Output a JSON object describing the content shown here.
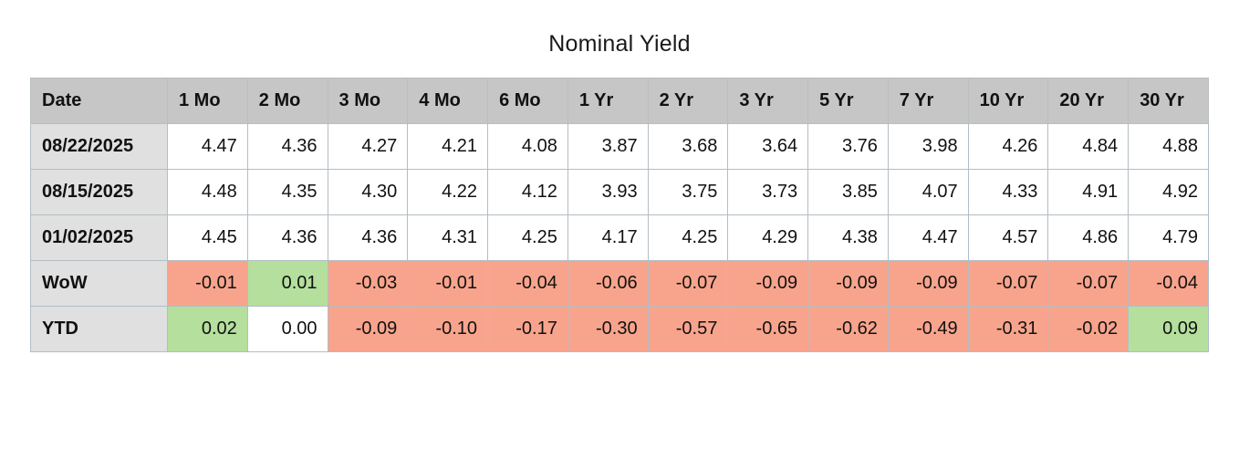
{
  "title": "Nominal Yield",
  "colors": {
    "negative": "#f8a48d",
    "positive": "#b5df9d",
    "neutral": "#ffffff",
    "header_bg": "#c6c6c6",
    "label_bg": "#e0e0e0"
  },
  "table": {
    "columns": [
      "Date",
      "1 Mo",
      "2 Mo",
      "3 Mo",
      "4 Mo",
      "6 Mo",
      "1 Yr",
      "2 Yr",
      "3 Yr",
      "5 Yr",
      "7 Yr",
      "10 Yr",
      "20 Yr",
      "30 Yr"
    ],
    "rows": [
      {
        "label": "08/22/2025",
        "values": [
          "4.47",
          "4.36",
          "4.27",
          "4.21",
          "4.08",
          "3.87",
          "3.68",
          "3.64",
          "3.76",
          "3.98",
          "4.26",
          "4.84",
          "4.88"
        ]
      },
      {
        "label": "08/15/2025",
        "values": [
          "4.48",
          "4.35",
          "4.30",
          "4.22",
          "4.12",
          "3.93",
          "3.75",
          "3.73",
          "3.85",
          "4.07",
          "4.33",
          "4.91",
          "4.92"
        ]
      },
      {
        "label": "01/02/2025",
        "values": [
          "4.45",
          "4.36",
          "4.36",
          "4.31",
          "4.25",
          "4.17",
          "4.25",
          "4.29",
          "4.38",
          "4.47",
          "4.57",
          "4.86",
          "4.79"
        ]
      },
      {
        "label": "WoW",
        "values": [
          "-0.01",
          "0.01",
          "-0.03",
          "-0.01",
          "-0.04",
          "-0.06",
          "-0.07",
          "-0.09",
          "-0.09",
          "-0.09",
          "-0.07",
          "-0.07",
          "-0.04"
        ]
      },
      {
        "label": "YTD",
        "values": [
          "0.02",
          "0.00",
          "-0.09",
          "-0.10",
          "-0.17",
          "-0.30",
          "-0.57",
          "-0.65",
          "-0.62",
          "-0.49",
          "-0.31",
          "-0.02",
          "0.09"
        ]
      }
    ]
  },
  "chart_data": {
    "type": "table",
    "title": "Nominal Yield",
    "columns": [
      "1 Mo",
      "2 Mo",
      "3 Mo",
      "4 Mo",
      "6 Mo",
      "1 Yr",
      "2 Yr",
      "3 Yr",
      "5 Yr",
      "7 Yr",
      "10 Yr",
      "20 Yr",
      "30 Yr"
    ],
    "rows": [
      {
        "label": "08/22/2025",
        "values": [
          4.47,
          4.36,
          4.27,
          4.21,
          4.08,
          3.87,
          3.68,
          3.64,
          3.76,
          3.98,
          4.26,
          4.84,
          4.88
        ]
      },
      {
        "label": "08/15/2025",
        "values": [
          4.48,
          4.35,
          4.3,
          4.22,
          4.12,
          3.93,
          3.75,
          3.73,
          3.85,
          4.07,
          4.33,
          4.91,
          4.92
        ]
      },
      {
        "label": "01/02/2025",
        "values": [
          4.45,
          4.36,
          4.36,
          4.31,
          4.25,
          4.17,
          4.25,
          4.29,
          4.38,
          4.47,
          4.57,
          4.86,
          4.79
        ]
      },
      {
        "label": "WoW",
        "values": [
          -0.01,
          0.01,
          -0.03,
          -0.01,
          -0.04,
          -0.06,
          -0.07,
          -0.09,
          -0.09,
          -0.09,
          -0.07,
          -0.07,
          -0.04
        ]
      },
      {
        "label": "YTD",
        "values": [
          0.02,
          0.0,
          -0.09,
          -0.1,
          -0.17,
          -0.3,
          -0.57,
          -0.65,
          -0.62,
          -0.49,
          -0.31,
          -0.02,
          0.09
        ]
      }
    ],
    "cell_color_rule": "negative values shaded red, positive shaded green, zero white (applies to WoW and YTD rows only)"
  }
}
